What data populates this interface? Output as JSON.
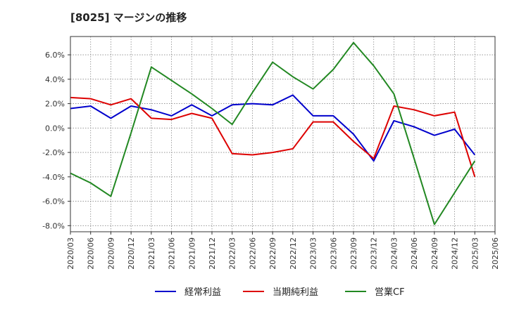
{
  "chart_data": {
    "type": "line",
    "title": "[8025]  マージンの推移",
    "x": [
      "2020/03",
      "2020/06",
      "2020/09",
      "2020/12",
      "2021/03",
      "2021/06",
      "2021/09",
      "2021/12",
      "2022/03",
      "2022/06",
      "2022/09",
      "2022/12",
      "2023/03",
      "2023/06",
      "2023/09",
      "2023/12",
      "2024/03",
      "2024/06",
      "2024/09",
      "2024/12",
      "2025/03",
      "2025/06"
    ],
    "ylim": [
      -8.5,
      7.5
    ],
    "yticks": [
      6.0,
      4.0,
      2.0,
      0.0,
      -2.0,
      -4.0,
      -6.0,
      -8.0
    ],
    "ytick_labels": [
      "6.0%",
      "4.0%",
      "2.0%",
      "0.0%",
      "-2.0%",
      "-4.0%",
      "-6.0%",
      "-8.0%"
    ],
    "grid": true,
    "legend_position": "bottom",
    "series": [
      {
        "name": "経常利益",
        "color": "#0000cc",
        "values": [
          1.6,
          1.8,
          0.8,
          1.8,
          1.5,
          1.0,
          1.9,
          1.0,
          1.9,
          2.0,
          1.9,
          2.7,
          1.0,
          1.0,
          -0.5,
          -2.7,
          0.6,
          0.1,
          -0.6,
          -0.1,
          -2.2,
          null
        ]
      },
      {
        "name": "当期純利益",
        "color": "#dd0000",
        "values": [
          2.5,
          2.4,
          1.9,
          2.4,
          0.8,
          0.7,
          1.2,
          0.8,
          -2.1,
          -2.2,
          -2.0,
          -1.7,
          0.5,
          0.5,
          -1.1,
          -2.5,
          1.8,
          1.5,
          1.0,
          1.3,
          -4.0,
          null
        ]
      },
      {
        "name": "営業CF",
        "color": "#228822",
        "values": [
          -3.7,
          -4.5,
          -5.6,
          -0.4,
          5.0,
          3.9,
          2.8,
          1.6,
          0.3,
          2.9,
          5.4,
          4.2,
          3.2,
          4.8,
          7.0,
          5.1,
          2.8,
          -2.5,
          -7.9,
          -5.3,
          -2.7,
          null
        ]
      }
    ]
  }
}
